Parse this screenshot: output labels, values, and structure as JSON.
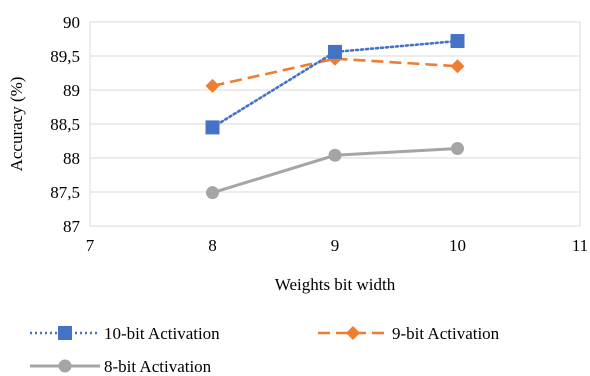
{
  "chart_data": {
    "type": "line",
    "xlabel": "Weights bit width",
    "ylabel": "Accuracy (%)",
    "xlim": [
      7,
      11
    ],
    "ylim": [
      87,
      90
    ],
    "x_ticks": [
      "7",
      "8",
      "9",
      "10",
      "11"
    ],
    "y_ticks": [
      "87",
      "87,5",
      "88",
      "88,5",
      "89",
      "89,5",
      "90"
    ],
    "grid": "horizontal",
    "legend_position": "bottom",
    "series": [
      {
        "name": "10-bit Activation",
        "x": [
          8,
          9,
          10
        ],
        "values": [
          88.45,
          89.56,
          89.72
        ],
        "color": "#4472C4",
        "line_style": "dotted",
        "marker": "square"
      },
      {
        "name": "9-bit Activation",
        "x": [
          8,
          9,
          10
        ],
        "values": [
          89.06,
          89.46,
          89.35
        ],
        "color": "#ED7D31",
        "line_style": "dashed",
        "marker": "diamond"
      },
      {
        "name": "8-bit Activation",
        "x": [
          8,
          9,
          10
        ],
        "values": [
          87.49,
          88.04,
          88.14
        ],
        "color": "#A5A5A5",
        "line_style": "solid",
        "marker": "circle"
      }
    ]
  }
}
